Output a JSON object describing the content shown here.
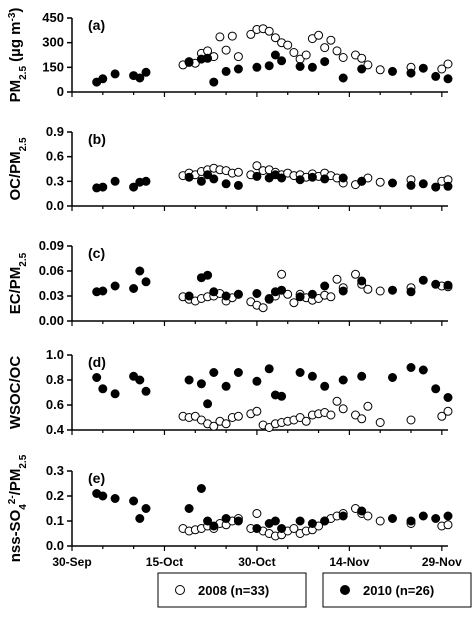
{
  "chart_data": [
    {
      "type": "scatter",
      "panel_label": "(a)",
      "ylabel_parts": {
        "base": "PM",
        "sub": "2.5",
        "unit_open": " (µg m",
        "unit_sup": "-3",
        "unit_close": ")"
      },
      "ylim": [
        0,
        450
      ],
      "yticks": [
        "0",
        "150",
        "300",
        "450"
      ],
      "series": [
        {
          "name": "2008 (n=33)",
          "marker": "open-circle",
          "x": [
            "2008-10-18",
            "2008-10-19",
            "2008-10-20",
            "2008-10-21",
            "2008-10-22",
            "2008-10-23",
            "2008-10-24",
            "2008-10-25",
            "2008-10-26",
            "2008-10-27",
            "2008-10-29",
            "2008-10-30",
            "2008-10-31",
            "2008-11-01",
            "2008-11-02",
            "2008-11-03",
            "2008-11-04",
            "2008-11-05",
            "2008-11-06",
            "2008-11-07",
            "2008-11-08",
            "2008-11-09",
            "2008-11-10",
            "2008-11-11",
            "2008-11-12",
            "2008-11-13",
            "2008-11-15",
            "2008-11-16",
            "2008-11-17",
            "2008-11-19",
            "2008-11-24",
            "2008-11-29",
            "2008-11-30"
          ],
          "y": [
            165,
            185,
            175,
            235,
            250,
            215,
            335,
            255,
            340,
            215,
            350,
            380,
            385,
            370,
            330,
            300,
            285,
            240,
            200,
            225,
            325,
            345,
            270,
            315,
            250,
            210,
            225,
            205,
            165,
            135,
            150,
            140,
            170
          ]
        },
        {
          "name": "2010 (n=26)",
          "marker": "filled-circle",
          "x": [
            "2010-10-04",
            "2010-10-05",
            "2010-10-07",
            "2010-10-10",
            "2010-10-11",
            "2010-10-12",
            "2010-10-19",
            "2010-10-21",
            "2010-10-22",
            "2010-10-23",
            "2010-10-25",
            "2010-10-27",
            "2010-10-30",
            "2010-11-01",
            "2010-11-02",
            "2010-11-03",
            "2010-11-06",
            "2010-11-08",
            "2010-11-10",
            "2010-11-13",
            "2010-11-16",
            "2010-11-21",
            "2010-11-24",
            "2010-11-26",
            "2010-11-28",
            "2010-11-30"
          ],
          "y": [
            60,
            80,
            110,
            100,
            85,
            120,
            180,
            200,
            205,
            60,
            125,
            140,
            150,
            160,
            225,
            190,
            155,
            150,
            185,
            85,
            140,
            125,
            115,
            145,
            95,
            80
          ]
        }
      ]
    },
    {
      "type": "scatter",
      "panel_label": "(b)",
      "ylabel_parts": {
        "base": "OC/PM",
        "sub": "2.5"
      },
      "ylim": [
        0,
        0.9
      ],
      "yticks": [
        "0.0",
        "0.3",
        "0.6",
        "0.9"
      ],
      "series": [
        {
          "name": "2008 (n=33)",
          "marker": "open-circle",
          "x": [
            "2008-10-18",
            "2008-10-19",
            "2008-10-20",
            "2008-10-21",
            "2008-10-22",
            "2008-10-23",
            "2008-10-24",
            "2008-10-25",
            "2008-10-26",
            "2008-10-27",
            "2008-10-29",
            "2008-10-30",
            "2008-10-31",
            "2008-11-01",
            "2008-11-02",
            "2008-11-03",
            "2008-11-04",
            "2008-11-05",
            "2008-11-06",
            "2008-11-07",
            "2008-11-08",
            "2008-11-09",
            "2008-11-10",
            "2008-11-11",
            "2008-11-12",
            "2008-11-13",
            "2008-11-15",
            "2008-11-16",
            "2008-11-17",
            "2008-11-19",
            "2008-11-24",
            "2008-11-29",
            "2008-11-30"
          ],
          "y": [
            0.37,
            0.4,
            0.38,
            0.42,
            0.44,
            0.46,
            0.44,
            0.43,
            0.4,
            0.41,
            0.38,
            0.49,
            0.43,
            0.44,
            0.41,
            0.38,
            0.4,
            0.37,
            0.38,
            0.35,
            0.39,
            0.36,
            0.4,
            0.37,
            0.34,
            0.28,
            0.26,
            0.3,
            0.34,
            0.29,
            0.32,
            0.3,
            0.32
          ]
        },
        {
          "name": "2010 (n=26)",
          "marker": "filled-circle",
          "x": [
            "2010-10-04",
            "2010-10-05",
            "2010-10-07",
            "2010-10-10",
            "2010-10-11",
            "2010-10-12",
            "2010-10-19",
            "2010-10-21",
            "2010-10-22",
            "2010-10-23",
            "2010-10-25",
            "2010-10-27",
            "2010-10-30",
            "2010-11-01",
            "2010-11-02",
            "2010-11-03",
            "2010-11-06",
            "2010-11-08",
            "2010-11-10",
            "2010-11-13",
            "2010-11-16",
            "2010-11-21",
            "2010-11-24",
            "2010-11-26",
            "2010-11-28",
            "2010-11-30"
          ],
          "y": [
            0.22,
            0.23,
            0.3,
            0.23,
            0.29,
            0.3,
            0.35,
            0.3,
            0.38,
            0.33,
            0.27,
            0.25,
            0.36,
            0.34,
            0.38,
            0.34,
            0.32,
            0.35,
            0.33,
            0.34,
            0.3,
            0.28,
            0.25,
            0.27,
            0.23,
            0.24
          ]
        }
      ]
    },
    {
      "type": "scatter",
      "panel_label": "(c)",
      "ylabel_parts": {
        "base": "EC/PM",
        "sub": "2.5"
      },
      "ylim": [
        0,
        0.09
      ],
      "yticks": [
        "0.00",
        "0.03",
        "0.06",
        "0.09"
      ],
      "series": [
        {
          "name": "2008 (n=33)",
          "marker": "open-circle",
          "x": [
            "2008-10-18",
            "2008-10-19",
            "2008-10-20",
            "2008-10-21",
            "2008-10-22",
            "2008-10-23",
            "2008-10-24",
            "2008-10-25",
            "2008-10-26",
            "2008-10-27",
            "2008-10-29",
            "2008-10-30",
            "2008-10-31",
            "2008-11-01",
            "2008-11-02",
            "2008-11-03",
            "2008-11-04",
            "2008-11-05",
            "2008-11-06",
            "2008-11-07",
            "2008-11-08",
            "2008-11-09",
            "2008-11-10",
            "2008-11-11",
            "2008-11-12",
            "2008-11-13",
            "2008-11-15",
            "2008-11-16",
            "2008-11-17",
            "2008-11-19",
            "2008-11-24",
            "2008-11-29",
            "2008-11-30"
          ],
          "y": [
            0.029,
            0.026,
            0.024,
            0.027,
            0.029,
            0.03,
            0.033,
            0.024,
            0.028,
            0.032,
            0.023,
            0.019,
            0.016,
            0.026,
            0.03,
            0.056,
            0.032,
            0.022,
            0.032,
            0.028,
            0.025,
            0.027,
            0.031,
            0.029,
            0.05,
            0.04,
            0.056,
            0.044,
            0.038,
            0.036,
            0.04,
            0.042,
            0.041
          ]
        },
        {
          "name": "2010 (n=26)",
          "marker": "filled-circle",
          "x": [
            "2010-10-04",
            "2010-10-05",
            "2010-10-07",
            "2010-10-10",
            "2010-10-11",
            "2010-10-12",
            "2010-10-19",
            "2010-10-21",
            "2010-10-22",
            "2010-10-23",
            "2010-10-25",
            "2010-10-27",
            "2010-10-30",
            "2010-11-01",
            "2010-11-02",
            "2010-11-03",
            "2010-11-06",
            "2010-11-08",
            "2010-11-10",
            "2010-11-13",
            "2010-11-16",
            "2010-11-21",
            "2010-11-24",
            "2010-11-26",
            "2010-11-28",
            "2010-11-30"
          ],
          "y": [
            0.035,
            0.036,
            0.042,
            0.039,
            0.06,
            0.047,
            0.03,
            0.052,
            0.055,
            0.035,
            0.03,
            0.032,
            0.033,
            0.027,
            0.035,
            0.037,
            0.029,
            0.032,
            0.042,
            0.036,
            0.048,
            0.037,
            0.035,
            0.049,
            0.044,
            0.043
          ]
        }
      ]
    },
    {
      "type": "scatter",
      "panel_label": "(d)",
      "ylabel_parts": {
        "base": "WSOC/OC"
      },
      "ylim": [
        0.4,
        1.0
      ],
      "yticks": [
        "0.4",
        "0.6",
        "0.8",
        "1.0"
      ],
      "series": [
        {
          "name": "2008 (n=33)",
          "marker": "open-circle",
          "x": [
            "2008-10-18",
            "2008-10-19",
            "2008-10-20",
            "2008-10-21",
            "2008-10-22",
            "2008-10-23",
            "2008-10-24",
            "2008-10-25",
            "2008-10-26",
            "2008-10-27",
            "2008-10-29",
            "2008-10-30",
            "2008-10-31",
            "2008-11-01",
            "2008-11-02",
            "2008-11-03",
            "2008-11-04",
            "2008-11-05",
            "2008-11-06",
            "2008-11-07",
            "2008-11-08",
            "2008-11-09",
            "2008-11-10",
            "2008-11-11",
            "2008-11-12",
            "2008-11-13",
            "2008-11-15",
            "2008-11-16",
            "2008-11-17",
            "2008-11-19",
            "2008-11-24",
            "2008-11-29",
            "2008-11-30"
          ],
          "y": [
            0.51,
            0.5,
            0.51,
            0.48,
            0.45,
            0.43,
            0.47,
            0.45,
            0.5,
            0.51,
            0.53,
            0.55,
            0.44,
            0.42,
            0.45,
            0.46,
            0.47,
            0.48,
            0.5,
            0.47,
            0.52,
            0.53,
            0.54,
            0.52,
            0.63,
            0.57,
            0.52,
            0.49,
            0.59,
            0.46,
            0.48,
            0.51,
            0.55
          ]
        },
        {
          "name": "2010 (n=26)",
          "marker": "filled-circle",
          "x": [
            "2010-10-04",
            "2010-10-05",
            "2010-10-07",
            "2010-10-10",
            "2010-10-11",
            "2010-10-12",
            "2010-10-19",
            "2010-10-21",
            "2010-10-22",
            "2010-10-23",
            "2010-10-25",
            "2010-10-27",
            "2010-10-30",
            "2010-11-01",
            "2010-11-02",
            "2010-11-03",
            "2010-11-06",
            "2010-11-08",
            "2010-11-10",
            "2010-11-13",
            "2010-11-16",
            "2010-11-21",
            "2010-11-24",
            "2010-11-26",
            "2010-11-28",
            "2010-11-30"
          ],
          "y": [
            0.82,
            0.73,
            0.69,
            0.83,
            0.8,
            0.71,
            0.8,
            0.77,
            0.61,
            0.86,
            0.75,
            0.86,
            0.79,
            0.89,
            0.68,
            0.67,
            0.86,
            0.83,
            0.75,
            0.8,
            0.83,
            0.82,
            0.9,
            0.88,
            0.73,
            0.66
          ]
        }
      ]
    },
    {
      "type": "scatter",
      "panel_label": "(e)",
      "ylabel_parts": {
        "base": "nss-SO",
        "sub": "4",
        "sup": "2-",
        "tail": "/PM",
        "sub2": "2.5"
      },
      "ylim": [
        0,
        0.3
      ],
      "yticks": [
        "0.0",
        "0.1",
        "0.2",
        "0.3"
      ],
      "xticks": [
        "30-Sep",
        "15-Oct",
        "30-Oct",
        "14-Nov",
        "29-Nov"
      ],
      "xlim": [
        "09-30",
        "11-30"
      ],
      "series": [
        {
          "name": "2008 (n=33)",
          "marker": "open-circle",
          "x": [
            "2008-10-18",
            "2008-10-19",
            "2008-10-20",
            "2008-10-21",
            "2008-10-22",
            "2008-10-23",
            "2008-10-24",
            "2008-10-25",
            "2008-10-26",
            "2008-10-27",
            "2008-10-29",
            "2008-10-30",
            "2008-10-31",
            "2008-11-01",
            "2008-11-02",
            "2008-11-03",
            "2008-11-04",
            "2008-11-05",
            "2008-11-06",
            "2008-11-07",
            "2008-11-08",
            "2008-11-09",
            "2008-11-10",
            "2008-11-11",
            "2008-11-12",
            "2008-11-13",
            "2008-11-15",
            "2008-11-16",
            "2008-11-17",
            "2008-11-19",
            "2008-11-24",
            "2008-11-29",
            "2008-11-30"
          ],
          "y": [
            0.07,
            0.06,
            0.065,
            0.07,
            0.08,
            0.07,
            0.09,
            0.085,
            0.1,
            0.11,
            0.07,
            0.13,
            0.06,
            0.05,
            0.04,
            0.045,
            0.06,
            0.07,
            0.05,
            0.06,
            0.065,
            0.08,
            0.1,
            0.11,
            0.12,
            0.13,
            0.15,
            0.13,
            0.12,
            0.1,
            0.09,
            0.08,
            0.085
          ]
        },
        {
          "name": "2010 (n=26)",
          "marker": "filled-circle",
          "x": [
            "2010-10-04",
            "2010-10-05",
            "2010-10-07",
            "2010-10-10",
            "2010-10-11",
            "2010-10-12",
            "2010-10-19",
            "2010-10-21",
            "2010-10-22",
            "2010-10-23",
            "2010-10-25",
            "2010-10-27",
            "2010-10-30",
            "2010-11-01",
            "2010-11-02",
            "2010-11-03",
            "2010-11-06",
            "2010-11-08",
            "2010-11-10",
            "2010-11-13",
            "2010-11-16",
            "2010-11-21",
            "2010-11-24",
            "2010-11-26",
            "2010-11-28",
            "2010-11-30"
          ],
          "y": [
            0.21,
            0.2,
            0.19,
            0.18,
            0.11,
            0.15,
            0.15,
            0.23,
            0.1,
            0.08,
            0.11,
            0.1,
            0.07,
            0.09,
            0.1,
            0.07,
            0.1,
            0.09,
            0.1,
            0.12,
            0.14,
            0.11,
            0.1,
            0.12,
            0.11,
            0.12
          ]
        }
      ]
    }
  ],
  "legend": [
    {
      "label": "2008 (n=33)",
      "marker": "open-circle"
    },
    {
      "label": "2010 (n=26)",
      "marker": "filled-circle"
    }
  ]
}
